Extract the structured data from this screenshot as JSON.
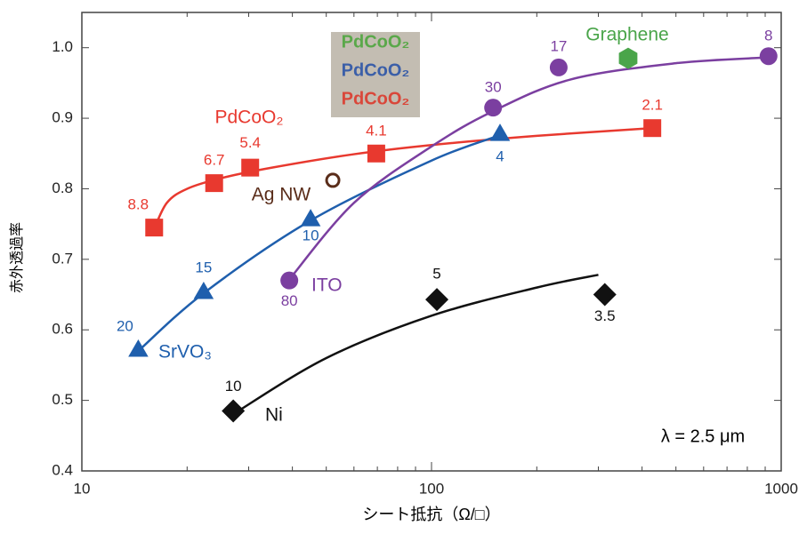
{
  "chart_data": {
    "type": "scatter",
    "xlabel": "シート抵抗（Ω/□）",
    "ylabel": "赤外透過率",
    "xlog": true,
    "xlim": [
      10,
      1000
    ],
    "xticks": [
      10,
      100,
      1000
    ],
    "xminorticks": [
      20,
      30,
      40,
      50,
      60,
      70,
      80,
      90,
      200,
      300,
      400,
      500,
      600,
      700,
      800,
      900
    ],
    "ylim": [
      0.4,
      1.05
    ],
    "yticks": [
      0.4,
      0.5,
      0.6,
      0.7,
      0.8,
      0.9,
      {
        "value": 1.0,
        "label": "1.0"
      }
    ],
    "annotation": "λ = 2.5 μm",
    "inset": [
      {
        "text": "PdCoO₂",
        "color": "#5aa84a"
      },
      {
        "text": "PdCoO₂",
        "color": "#3b5fa8"
      },
      {
        "text": "PdCoO₂",
        "color": "#d9473a"
      }
    ],
    "series": [
      {
        "name": "PdCoO₂",
        "color": "#e8392f",
        "marker": "square",
        "x": [
          16.1,
          23.9,
          30.3,
          69.5,
          428
        ],
        "values": [
          0.745,
          0.808,
          0.83,
          0.85,
          0.886
        ],
        "point_labels": [
          "8.8",
          "6.7",
          "5.4",
          "4.1",
          "2.1"
        ],
        "fit_x": [
          16,
          17.5,
          20,
          25,
          35,
          60,
          100,
          200,
          425
        ],
        "fit_y": [
          0.74,
          0.78,
          0.8,
          0.815,
          0.83,
          0.849,
          0.862,
          0.875,
          0.886
        ]
      },
      {
        "name": "SrVO₃",
        "color": "#1f5fad",
        "marker": "triangle",
        "x": [
          14.5,
          22.3,
          45.1,
          157
        ],
        "values": [
          0.57,
          0.652,
          0.755,
          0.876
        ],
        "point_labels": [
          "20",
          "15",
          "10",
          "4"
        ],
        "fit_x": [
          14.5,
          22.3,
          45.1,
          100,
          157
        ],
        "fit_y": [
          0.57,
          0.652,
          0.755,
          0.84,
          0.876
        ]
      },
      {
        "name": "ITO",
        "color": "#7b3fa0",
        "marker": "circle",
        "x": [
          39.2,
          150,
          231,
          920
        ],
        "values": [
          0.67,
          0.915,
          0.972,
          0.988
        ],
        "point_labels": [
          "80",
          "30",
          "17",
          "8"
        ],
        "fit_x": [
          39,
          60,
          100,
          150,
          250,
          500,
          900
        ],
        "fit_y": [
          0.67,
          0.78,
          0.86,
          0.91,
          0.955,
          0.978,
          0.986
        ]
      },
      {
        "name": "Ni",
        "color": "#111111",
        "marker": "diamond",
        "x": [
          27.1,
          103.6,
          313
        ],
        "values": [
          0.485,
          0.643,
          0.65
        ],
        "point_labels": [
          "10",
          "5",
          "3.5"
        ],
        "fit_x": [
          27,
          50,
          100,
          200,
          300
        ],
        "fit_y": [
          0.48,
          0.56,
          0.62,
          0.66,
          0.678
        ]
      },
      {
        "name": "Graphene",
        "color": "#4aa54a",
        "marker": "hexagon",
        "x": [
          365
        ],
        "values": [
          0.985
        ]
      },
      {
        "name": "Ag NW",
        "color": "#5a2d1a",
        "marker": "ring",
        "x": [
          52.2
        ],
        "values": [
          0.812
        ]
      }
    ]
  }
}
